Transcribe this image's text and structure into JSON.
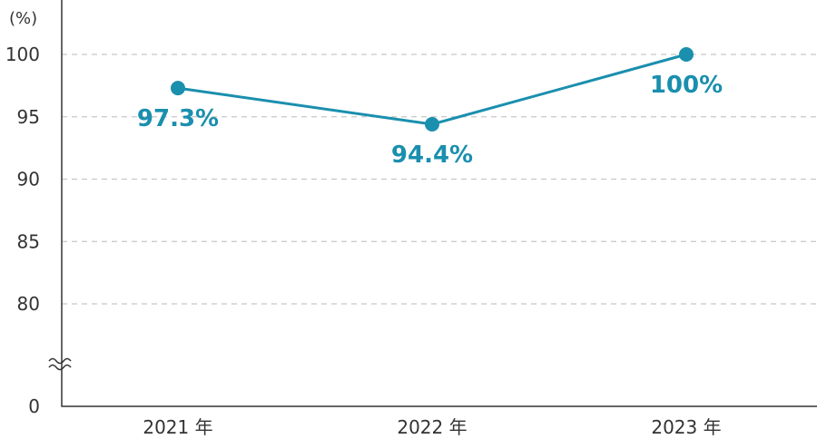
{
  "chart_data": {
    "type": "line",
    "unit_label": "(%)",
    "categories": [
      "2021 年",
      "2022 年",
      "2023 年"
    ],
    "series": [
      {
        "values": [
          97.3,
          94.4,
          100
        ],
        "data_labels": [
          "97.3%",
          "94.4%",
          "100%"
        ]
      }
    ],
    "y_ticks": [
      {
        "value": 100,
        "label": "100"
      },
      {
        "value": 95,
        "label": "95"
      },
      {
        "value": 90,
        "label": "90"
      },
      {
        "value": 85,
        "label": "85"
      },
      {
        "value": 80,
        "label": "80"
      },
      {
        "value": 0,
        "label": "0"
      }
    ],
    "ylim": [
      80,
      100
    ],
    "y_axis_break": true,
    "grid": true,
    "legend": "none",
    "colors": {
      "series": "#1a8fae",
      "axis": "#333333",
      "grid": "#c8c8c8"
    }
  }
}
